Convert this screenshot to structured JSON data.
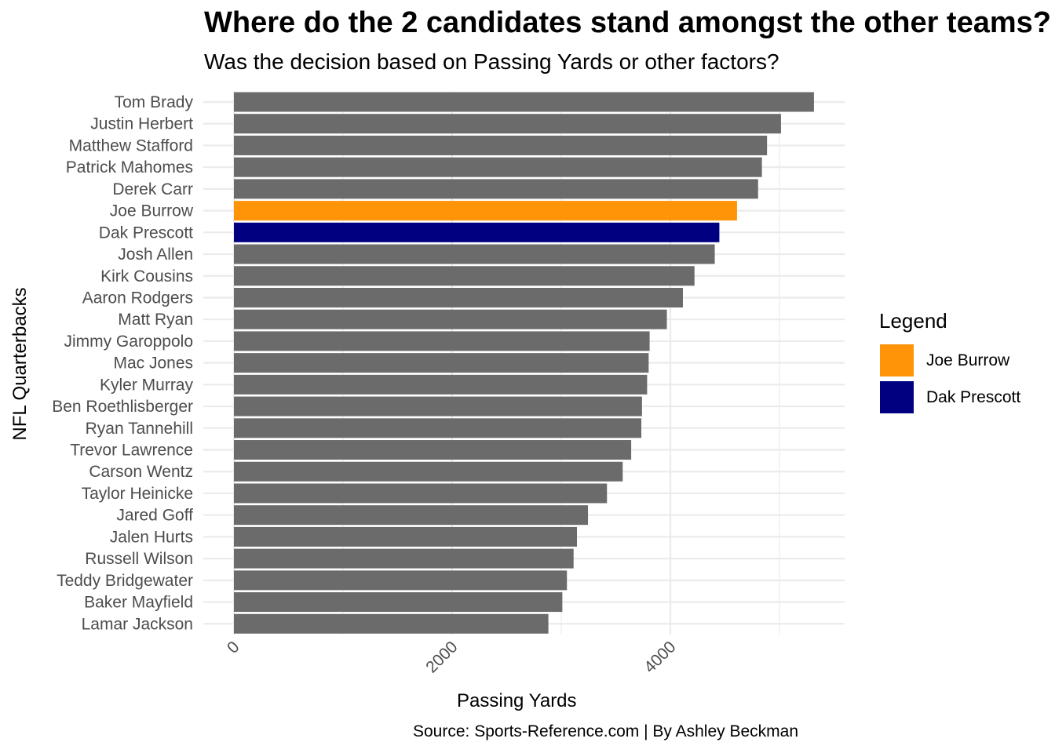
{
  "chart_data": {
    "type": "bar",
    "orientation": "horizontal",
    "title": "Where do the 2 candidates stand amongst the other teams?",
    "subtitle": "Was the decision based on Passing Yards or other factors?",
    "xlabel": "Passing Yards",
    "ylabel": "NFL Quarterbacks",
    "caption": "Source: Sports-Reference.com | By Ashley Beckman",
    "xlim": [
      0,
      5600
    ],
    "xticks": [
      0,
      2000,
      4000
    ],
    "grid": true,
    "legend_position": "right",
    "default_color": "#6b6b6b",
    "categories": [
      "Tom Brady",
      "Justin Herbert",
      "Matthew Stafford",
      "Patrick Mahomes",
      "Derek Carr",
      "Joe Burrow",
      "Dak Prescott",
      "Josh Allen",
      "Kirk Cousins",
      "Aaron Rodgers",
      "Matt Ryan",
      "Jimmy Garoppolo",
      "Mac Jones",
      "Kyler Murray",
      "Ben Roethlisberger",
      "Ryan Tannehill",
      "Trevor Lawrence",
      "Carson Wentz",
      "Taylor Heinicke",
      "Jared Goff",
      "Jalen Hurts",
      "Russell Wilson",
      "Teddy Bridgewater",
      "Baker Mayfield",
      "Lamar Jackson"
    ],
    "values": [
      5316,
      5014,
      4886,
      4839,
      4804,
      4611,
      4449,
      4407,
      4221,
      4115,
      3968,
      3810,
      3801,
      3787,
      3740,
      3734,
      3641,
      3563,
      3419,
      3245,
      3144,
      3113,
      3052,
      3010,
      2882
    ],
    "highlight": {
      "Joe Burrow": "#ff9408",
      "Dak Prescott": "#000080"
    }
  },
  "legend": {
    "title": "Legend",
    "items": [
      {
        "label": "Joe Burrow",
        "color": "#ff9408"
      },
      {
        "label": "Dak Prescott",
        "color": "#000080"
      }
    ]
  }
}
